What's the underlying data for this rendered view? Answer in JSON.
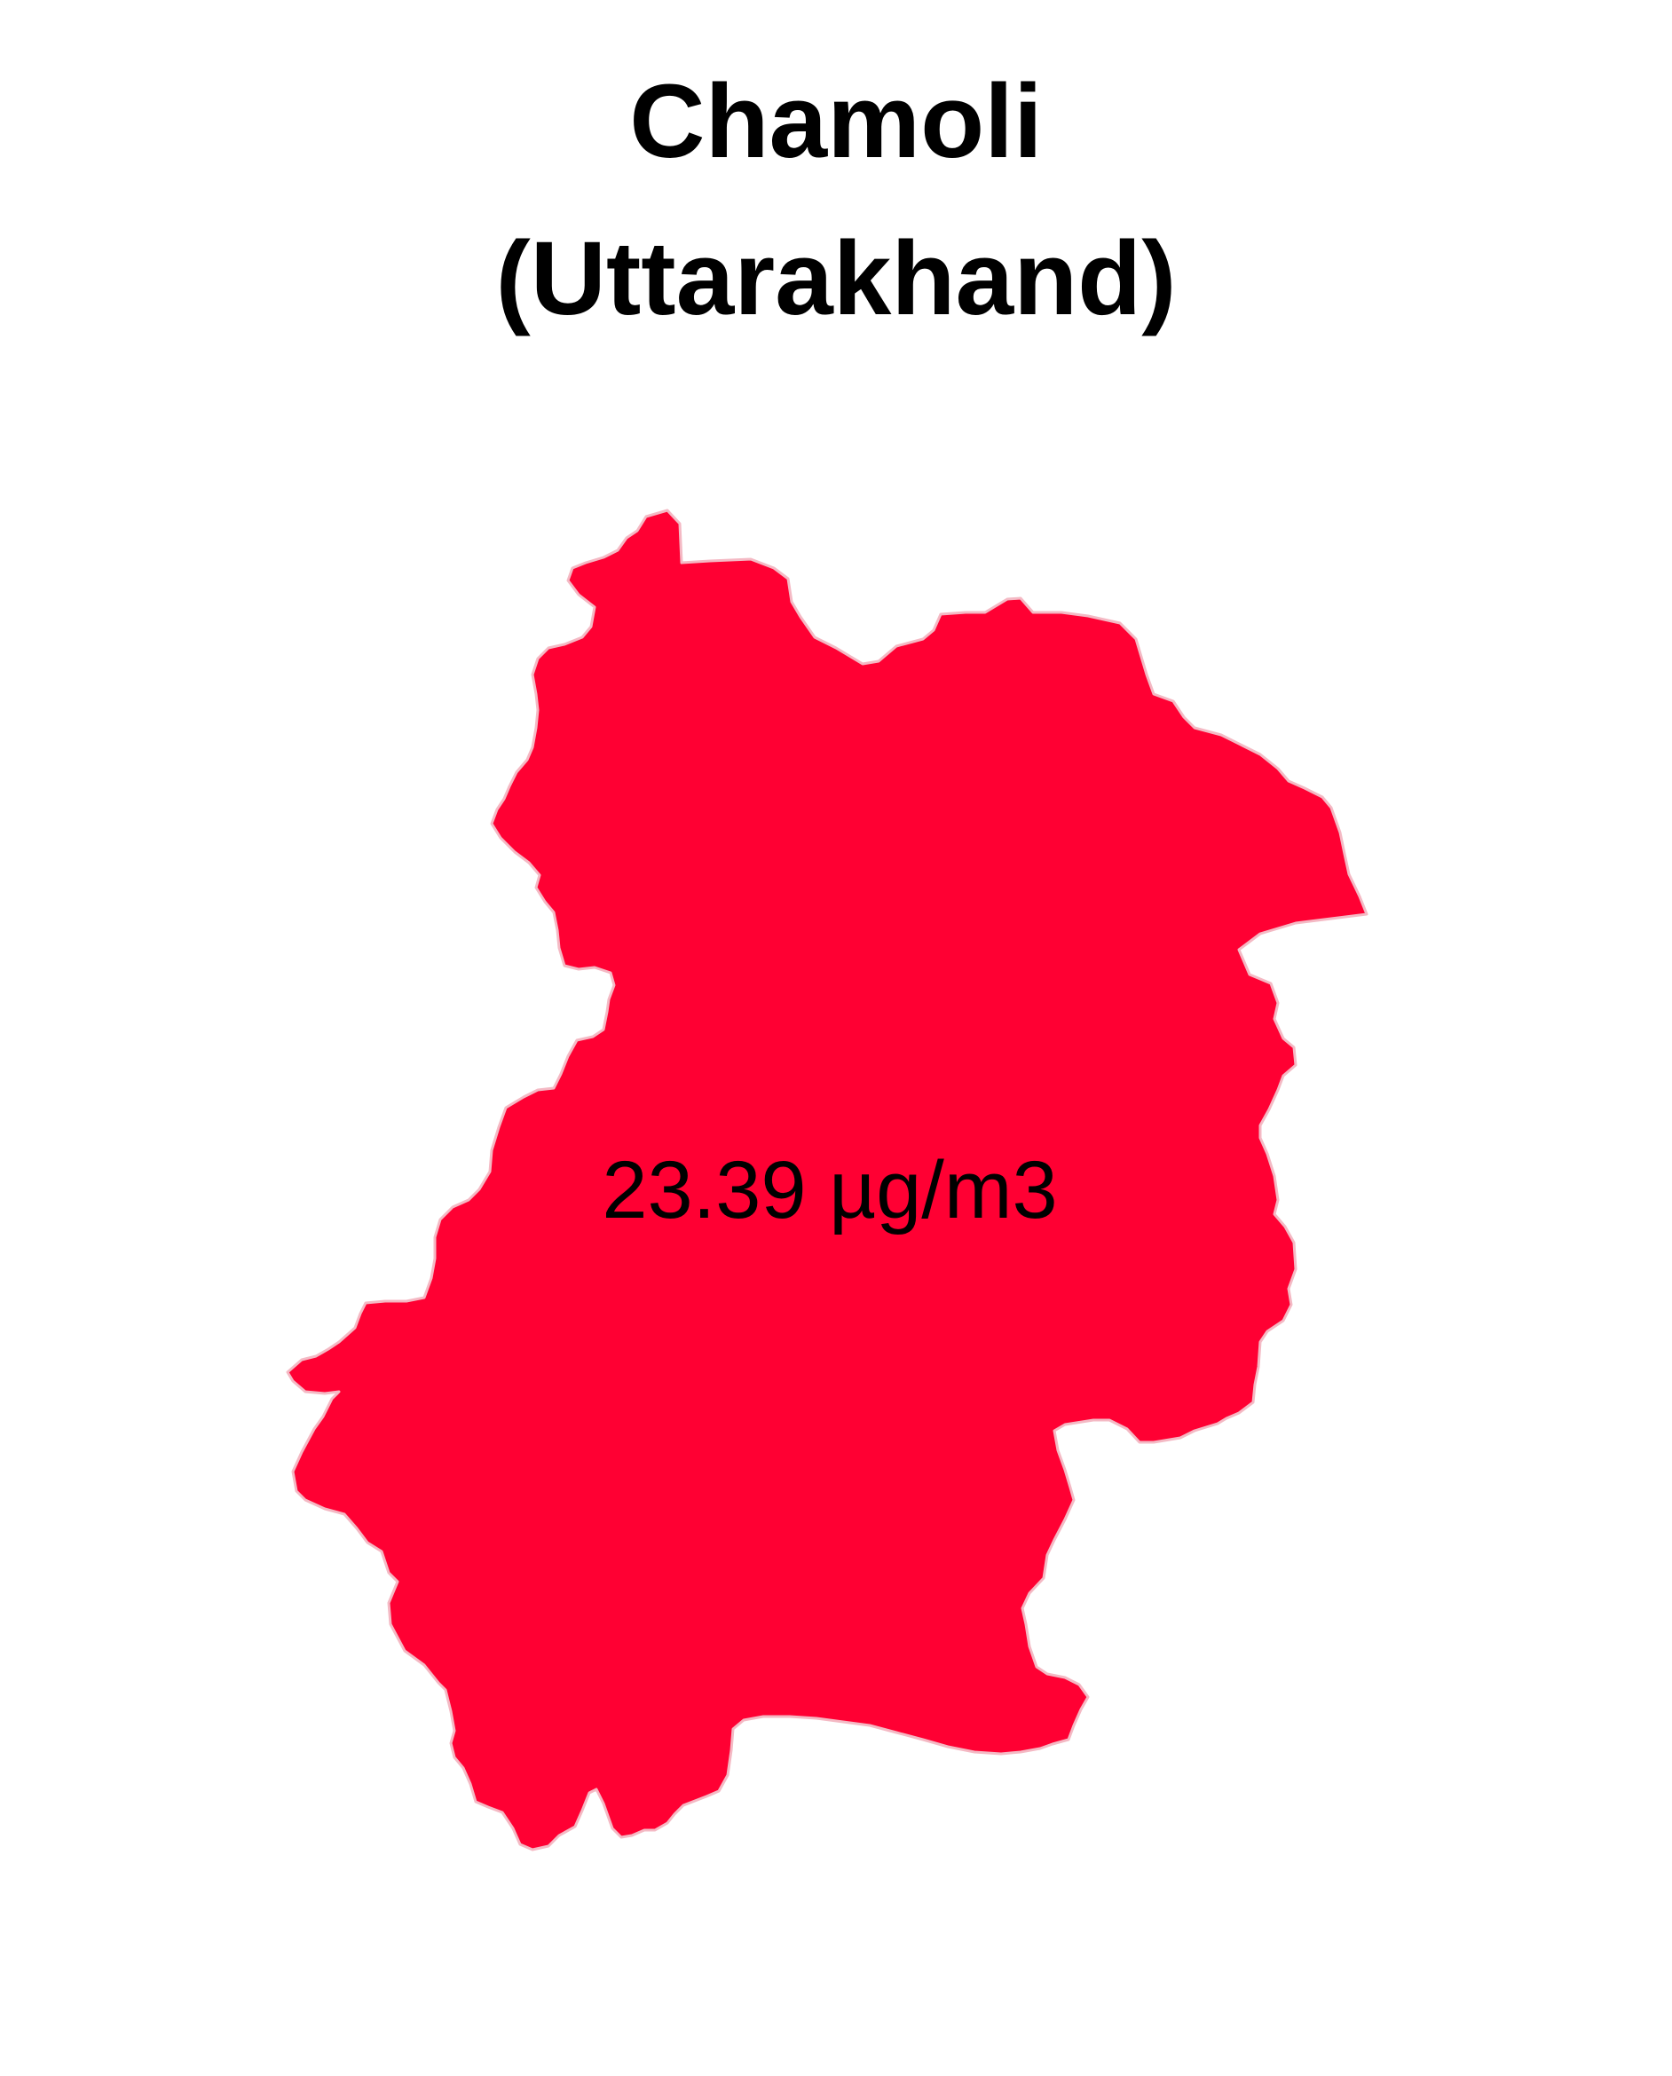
{
  "title": {
    "line1": "Chamoli",
    "line2": "(Uttarakhand)"
  },
  "region": {
    "name": "Chamoli",
    "value_label": "23.39 µg/m3",
    "fill_color": "#ff0033",
    "stroke_color": "#f4b9c4"
  }
}
